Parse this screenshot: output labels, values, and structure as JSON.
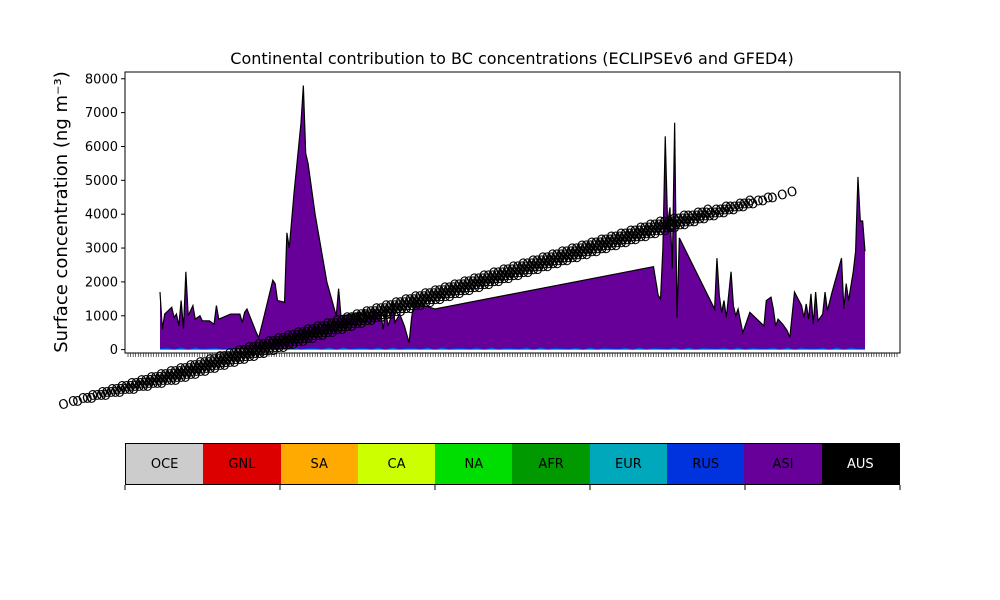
{
  "chart_data": {
    "type": "area",
    "title": "Continental contribution to BC concentrations (ECLIPSEv6 and GFED4)",
    "ylabel": "Surface concentration (ng m⁻³)",
    "ylim": [
      -100,
      8200
    ],
    "yticks": [
      0,
      1000,
      2000,
      3000,
      4000,
      5000,
      6000,
      7000,
      8000
    ],
    "xlabel": "",
    "x_tick_labels": "overlapping, illegible",
    "legend_placement": "bottom colorbar",
    "grid": false,
    "series": [
      {
        "name": "OCE",
        "color": "#cccccc"
      },
      {
        "name": "GNL",
        "color": "#dd0000"
      },
      {
        "name": "SA",
        "color": "#ffaa00"
      },
      {
        "name": "CA",
        "color": "#ccff00"
      },
      {
        "name": "NA",
        "color": "#00dd00"
      },
      {
        "name": "AFR",
        "color": "#009900"
      },
      {
        "name": "EUR",
        "color": "#00a8bb"
      },
      {
        "name": "RUS",
        "color": "#0033dd"
      },
      {
        "name": "ASI",
        "color": "#660099"
      },
      {
        "name": "AUS",
        "color": "#000000"
      }
    ],
    "total_profile": [
      [
        0,
        1700
      ],
      [
        1,
        600
      ],
      [
        2,
        1050
      ],
      [
        5,
        1250
      ],
      [
        6,
        950
      ],
      [
        7,
        1050
      ],
      [
        8,
        700
      ],
      [
        9,
        1450
      ],
      [
        10,
        620
      ],
      [
        11,
        2300
      ],
      [
        12,
        1000
      ],
      [
        14,
        1300
      ],
      [
        15,
        900
      ],
      [
        17,
        1000
      ],
      [
        18,
        850
      ],
      [
        21,
        850
      ],
      [
        23,
        750
      ],
      [
        24,
        1300
      ],
      [
        25,
        900
      ],
      [
        30,
        1050
      ],
      [
        34,
        1050
      ],
      [
        35,
        800
      ],
      [
        36,
        1100
      ],
      [
        37,
        1200
      ],
      [
        41,
        500
      ],
      [
        42,
        350
      ],
      [
        44,
        900
      ],
      [
        48,
        2050
      ],
      [
        49,
        1950
      ],
      [
        50,
        1450
      ],
      [
        53,
        1400
      ],
      [
        54,
        3450
      ],
      [
        55,
        3000
      ],
      [
        57,
        4600
      ],
      [
        60,
        6700
      ],
      [
        61,
        7800
      ],
      [
        62,
        5800
      ],
      [
        63,
        5500
      ],
      [
        66,
        4000
      ],
      [
        71,
        2000
      ],
      [
        75,
        1000
      ],
      [
        76,
        1800
      ],
      [
        77,
        1000
      ],
      [
        82,
        1050
      ],
      [
        85,
        1100
      ],
      [
        86,
        800
      ],
      [
        87,
        1200
      ],
      [
        88,
        900
      ],
      [
        89,
        1100
      ],
      [
        90,
        800
      ],
      [
        91,
        1200
      ],
      [
        93,
        1000
      ],
      [
        94,
        1050
      ],
      [
        95,
        600
      ],
      [
        96,
        1200
      ],
      [
        97,
        700
      ],
      [
        98,
        900
      ],
      [
        99,
        1350
      ],
      [
        100,
        800
      ],
      [
        102,
        1050
      ],
      [
        104,
        700
      ],
      [
        106,
        200
      ],
      [
        107,
        900
      ],
      [
        108,
        1400
      ],
      [
        110,
        1350
      ],
      [
        117,
        1200
      ],
      [
        210,
        2450
      ],
      [
        212,
        1600
      ],
      [
        213,
        1500
      ],
      [
        214,
        3000
      ],
      [
        215,
        6300
      ],
      [
        216,
        3700
      ],
      [
        217,
        4200
      ],
      [
        218,
        2400
      ],
      [
        219,
        6700
      ],
      [
        220,
        950
      ],
      [
        221,
        3300
      ],
      [
        236,
        1200
      ],
      [
        237,
        2700
      ],
      [
        238,
        1600
      ],
      [
        239,
        1100
      ],
      [
        240,
        1450
      ],
      [
        241,
        950
      ],
      [
        243,
        2300
      ],
      [
        244,
        1300
      ],
      [
        245,
        1000
      ],
      [
        246,
        1200
      ],
      [
        248,
        500
      ],
      [
        251,
        1100
      ],
      [
        257,
        700
      ],
      [
        258,
        1450
      ],
      [
        260,
        1550
      ],
      [
        261,
        1200
      ],
      [
        262,
        700
      ],
      [
        263,
        900
      ],
      [
        265,
        750
      ],
      [
        267,
        550
      ],
      [
        268,
        350
      ],
      [
        270,
        1700
      ],
      [
        273,
        1300
      ],
      [
        274,
        950
      ],
      [
        275,
        1350
      ],
      [
        276,
        900
      ],
      [
        277,
        1650
      ],
      [
        278,
        750
      ],
      [
        279,
        1700
      ],
      [
        280,
        850
      ],
      [
        282,
        1050
      ],
      [
        283,
        1700
      ],
      [
        284,
        1150
      ],
      [
        286,
        1700
      ],
      [
        290,
        2700
      ],
      [
        291,
        1200
      ],
      [
        292,
        1950
      ],
      [
        293,
        1450
      ],
      [
        295,
        2300
      ],
      [
        296,
        2900
      ],
      [
        297,
        5100
      ],
      [
        298,
        3800
      ],
      [
        299,
        3800
      ],
      [
        300,
        2900
      ]
    ]
  }
}
